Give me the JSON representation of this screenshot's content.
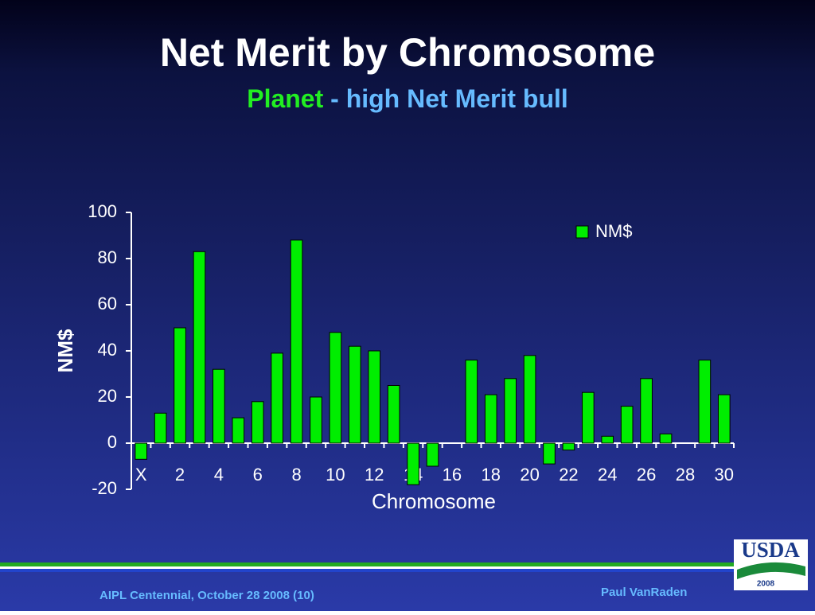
{
  "chart_data": {
    "type": "bar",
    "title": "Net Merit by Chromosome",
    "subtitle": {
      "highlight": "Planet",
      "rest": "- high Net Merit bull"
    },
    "xlabel": "Chromosome",
    "ylabel": "NM$",
    "categories": [
      "X",
      null,
      "2",
      null,
      "4",
      null,
      "6",
      null,
      "8",
      null,
      "10",
      null,
      "12",
      null,
      "14",
      null,
      "16",
      null,
      "18",
      null,
      "20",
      null,
      "22",
      null,
      "24",
      null,
      "26",
      null,
      "28",
      null,
      "30"
    ],
    "series": [
      {
        "name": "NM$",
        "color": "#00ee00",
        "values": [
          -7,
          13,
          50,
          83,
          32,
          11,
          18,
          39,
          88,
          20,
          48,
          42,
          40,
          25,
          -18,
          -10,
          0,
          36,
          21,
          28,
          38,
          -9,
          -3,
          22,
          3,
          16,
          28,
          4,
          0,
          36,
          21
        ]
      }
    ],
    "ylim": [
      -20,
      100
    ],
    "yticks": [
      -20,
      0,
      20,
      40,
      60,
      80,
      100
    ],
    "legend": "top-right"
  },
  "footer": {
    "event": "AIPL Centennial, October 28 2008 (10)",
    "author": "Paul VanRaden"
  },
  "logo": {
    "name": "USDA",
    "year": "2008"
  }
}
